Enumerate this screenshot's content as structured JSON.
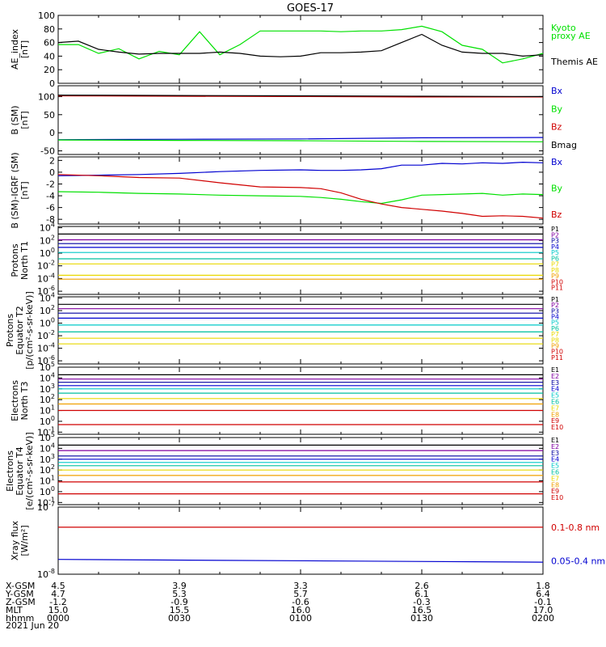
{
  "title": "GOES-17",
  "colors": {
    "black": "#000000",
    "green": "#00e000",
    "blue": "#0000d0",
    "red": "#d00000",
    "navy": "#0000a0",
    "cyan": "#00c8c8",
    "teal": "#00c0a0",
    "yellow": "#e8d800",
    "orange": "#f0a000",
    "purple": "#8000a0"
  },
  "chart_data": [
    {
      "type": "line",
      "id": "ae",
      "ylabel": [
        "AE_index",
        "[nT]"
      ],
      "yticks": [
        "100",
        "80",
        "60",
        "40",
        "20",
        "0"
      ],
      "ylim": [
        0,
        100
      ],
      "x": [
        0,
        5,
        10,
        15,
        20,
        25,
        30,
        35,
        40,
        45,
        50,
        55,
        60,
        65,
        70,
        75,
        80,
        85,
        90,
        95,
        100,
        105,
        110,
        115,
        120
      ],
      "series": [
        {
          "name": "Kyoto proxy AE",
          "color": "#00e000",
          "values": [
            57,
            57,
            44,
            51,
            36,
            47,
            42,
            76,
            42,
            57,
            77,
            77,
            77,
            77,
            76,
            77,
            77,
            79,
            84,
            76,
            56,
            50,
            30,
            36,
            44
          ]
        },
        {
          "name": "Themis AE",
          "color": "#000000",
          "values": [
            60,
            62,
            50,
            46,
            43,
            44,
            44,
            44,
            46,
            44,
            40,
            39,
            40,
            45,
            45,
            46,
            48,
            60,
            72,
            56,
            46,
            44,
            44,
            40,
            42
          ]
        }
      ],
      "legend": [
        {
          "text": "Kyoto",
          "color": "#00e000"
        },
        {
          "text": "proxy AE",
          "color": "#00e000"
        },
        {
          "text": "Themis AE",
          "color": "#000000"
        }
      ]
    },
    {
      "type": "line",
      "id": "bsm",
      "ylabel": [
        "B (SM)",
        "[nT]"
      ],
      "yticks": [
        "100",
        "50",
        "0",
        "-50"
      ],
      "ylim": [
        -60,
        130
      ],
      "x": [
        0,
        30,
        60,
        90,
        120
      ],
      "series": [
        {
          "name": "Bx",
          "color": "#0000d0",
          "values": [
            -19,
            -18,
            -17,
            -14,
            -13
          ]
        },
        {
          "name": "By",
          "color": "#00e000",
          "values": [
            -20,
            -21,
            -22,
            -24,
            -25
          ]
        },
        {
          "name": "Bz",
          "color": "#d00000",
          "values": [
            102,
            101,
            100,
            99,
            99
          ]
        },
        {
          "name": "Bmag",
          "color": "#000000",
          "values": [
            104,
            103,
            102,
            101,
            100
          ]
        }
      ],
      "legend": [
        {
          "text": "Bx",
          "color": "#0000d0"
        },
        {
          "text": "By",
          "color": "#00e000"
        },
        {
          "text": "Bz",
          "color": "#d00000"
        },
        {
          "text": "Bmag",
          "color": "#000000"
        }
      ]
    },
    {
      "type": "line",
      "id": "bdiff",
      "ylabel": [
        "B (SM)-IGRF (SM)",
        "[nT]"
      ],
      "yticks": [
        "2",
        "0",
        "-2",
        "-4",
        "-6",
        "-8"
      ],
      "ylim": [
        -8.8,
        2.6
      ],
      "x": [
        0,
        10,
        20,
        30,
        40,
        50,
        60,
        65,
        70,
        75,
        80,
        85,
        90,
        95,
        100,
        105,
        110,
        115,
        120
      ],
      "series": [
        {
          "name": "Bx",
          "color": "#0000d0",
          "values": [
            -0.6,
            -0.5,
            -0.4,
            -0.2,
            0.1,
            0.3,
            0.4,
            0.3,
            0.3,
            0.4,
            0.6,
            1.2,
            1.2,
            1.5,
            1.4,
            1.6,
            1.5,
            1.7,
            1.6
          ]
        },
        {
          "name": "By",
          "color": "#00e000",
          "values": [
            -3.3,
            -3.4,
            -3.6,
            -3.7,
            -3.9,
            -4.0,
            -4.1,
            -4.3,
            -4.6,
            -5.0,
            -5.3,
            -4.7,
            -3.9,
            -3.8,
            -3.7,
            -3.6,
            -3.9,
            -3.7,
            -3.8
          ]
        },
        {
          "name": "Bz",
          "color": "#d00000",
          "values": [
            -0.4,
            -0.6,
            -0.9,
            -1.0,
            -1.8,
            -2.5,
            -2.6,
            -2.8,
            -3.5,
            -4.6,
            -5.4,
            -6.0,
            -6.3,
            -6.6,
            -7.0,
            -7.5,
            -7.4,
            -7.5,
            -7.8
          ]
        }
      ],
      "legend": [
        {
          "text": "Bx",
          "color": "#0000d0"
        },
        {
          "text": "By",
          "color": "#00e000"
        },
        {
          "text": "Bz",
          "color": "#d00000"
        }
      ]
    },
    {
      "type": "line",
      "id": "pnorth",
      "ylabel": [
        "Protons",
        "North T1"
      ],
      "ytick_exponents": [
        "4",
        "2",
        "0",
        "-2",
        "-4",
        "-6"
      ],
      "ylim_log10": [
        -6.5,
        4.2
      ],
      "x": [
        0,
        120
      ],
      "series": [
        {
          "name": "P1",
          "color": "#000000",
          "values_log10": [
            3.0,
            3.0
          ]
        },
        {
          "name": "P2",
          "color": "#8000a0",
          "values_log10": [
            2.1,
            2.1
          ]
        },
        {
          "name": "P3",
          "color": "#0000a0",
          "values_log10": [
            1.5,
            1.5
          ]
        },
        {
          "name": "P4",
          "color": "#0000d0",
          "values_log10": [
            0.9,
            0.9
          ]
        },
        {
          "name": "P5",
          "color": "#00c8c8",
          "values_log10": [
            0.1,
            0.1
          ]
        },
        {
          "name": "P6",
          "color": "#00c0a0",
          "values_log10": [
            -0.9,
            -0.9
          ]
        },
        {
          "name": "P7",
          "color": "#e8d800",
          "values_log10": [
            -1.7,
            -1.7
          ]
        },
        {
          "name": "P8",
          "color": "#e8d800",
          "values_log10": [
            -3.5,
            -3.5
          ]
        },
        {
          "name": "P9",
          "color": "#f0a000",
          "values_log10": [
            -4.1,
            -4.1
          ]
        }
      ],
      "legend": [
        {
          "text": "P1",
          "color": "#000000"
        },
        {
          "text": "P2",
          "color": "#8000a0"
        },
        {
          "text": "P3",
          "color": "#0000a0"
        },
        {
          "text": "P4",
          "color": "#0000d0"
        },
        {
          "text": "P5",
          "color": "#00c8c8"
        },
        {
          "text": "P6",
          "color": "#00c0a0"
        },
        {
          "text": "P7",
          "color": "#e8d800"
        },
        {
          "text": "P8",
          "color": "#e8d800"
        },
        {
          "text": "P9",
          "color": "#f0a000"
        },
        {
          "text": "P10",
          "color": "#d00000"
        },
        {
          "text": "P11",
          "color": "#d00000"
        }
      ]
    },
    {
      "type": "line",
      "id": "peq",
      "ylabel": [
        "Protons",
        "Equator T2",
        "[p/(cm²-s-sr-keV)]"
      ],
      "ytick_exponents": [
        "4",
        "2",
        "0",
        "-2",
        "-4",
        "-6"
      ],
      "ylim_log10": [
        -6.5,
        4.2
      ],
      "x": [
        0,
        120
      ],
      "series": [
        {
          "name": "P1",
          "color": "#000000",
          "values_log10": [
            3.0,
            3.0
          ]
        },
        {
          "name": "P2",
          "color": "#8000a0",
          "values_log10": [
            2.3,
            2.3
          ]
        },
        {
          "name": "P3",
          "color": "#0000a0",
          "values_log10": [
            1.6,
            1.6
          ]
        },
        {
          "name": "P4",
          "color": "#0000d0",
          "values_log10": [
            0.8,
            0.8
          ]
        },
        {
          "name": "P5",
          "color": "#00c8c8",
          "values_log10": [
            -0.3,
            -0.3
          ]
        },
        {
          "name": "P6",
          "color": "#00c0a0",
          "values_log10": [
            -1.4,
            -1.4
          ]
        },
        {
          "name": "P7",
          "color": "#e8d800",
          "values_log10": [
            -2.4,
            -2.4
          ]
        },
        {
          "name": "P8",
          "color": "#e8d800",
          "values_log10": [
            -3.3,
            -3.3
          ]
        }
      ],
      "legend": [
        {
          "text": "P1",
          "color": "#000000"
        },
        {
          "text": "P2",
          "color": "#8000a0"
        },
        {
          "text": "P3",
          "color": "#0000a0"
        },
        {
          "text": "P4",
          "color": "#0000d0"
        },
        {
          "text": "P5",
          "color": "#00c8c8"
        },
        {
          "text": "P6",
          "color": "#00c0a0"
        },
        {
          "text": "P7",
          "color": "#e8d800"
        },
        {
          "text": "P8",
          "color": "#e8d800"
        },
        {
          "text": "P9",
          "color": "#f0a000"
        },
        {
          "text": "P10",
          "color": "#d00000"
        },
        {
          "text": "P11",
          "color": "#d00000"
        }
      ]
    },
    {
      "type": "line",
      "id": "enorth",
      "ylabel": [
        "Electrons",
        "North T3"
      ],
      "ytick_exponents": [
        "5",
        "4",
        "3",
        "2",
        "1",
        "0",
        "-1"
      ],
      "ylim_log10": [
        -1.2,
        5.0
      ],
      "x": [
        0,
        120
      ],
      "series": [
        {
          "name": "E1",
          "color": "#000000",
          "values_log10": [
            4.3,
            4.3
          ]
        },
        {
          "name": "E2",
          "color": "#8000a0",
          "values_log10": [
            3.9,
            3.9
          ]
        },
        {
          "name": "E3",
          "color": "#0000a0",
          "values_log10": [
            3.6,
            3.6
          ]
        },
        {
          "name": "E4",
          "color": "#0000d0",
          "values_log10": [
            3.3,
            3.3
          ]
        },
        {
          "name": "E5",
          "color": "#00c8c8",
          "values_log10": [
            3.0,
            3.0
          ]
        },
        {
          "name": "E6",
          "color": "#00c0a0",
          "values_log10": [
            2.6,
            2.6
          ]
        },
        {
          "name": "E7",
          "color": "#e8d800",
          "values_log10": [
            2.1,
            2.1
          ]
        },
        {
          "name": "E8",
          "color": "#f0a000",
          "values_log10": [
            1.6,
            1.6
          ]
        },
        {
          "name": "E9",
          "color": "#d00000",
          "values_log10": [
            1.0,
            1.0
          ]
        },
        {
          "name": "E10",
          "color": "#d00000",
          "values_log10": [
            -0.3,
            -0.3
          ]
        }
      ],
      "legend": [
        {
          "text": "E1",
          "color": "#000000"
        },
        {
          "text": "E2",
          "color": "#8000a0"
        },
        {
          "text": "E3",
          "color": "#0000a0"
        },
        {
          "text": "E4",
          "color": "#0000d0"
        },
        {
          "text": "E5",
          "color": "#00c8c8"
        },
        {
          "text": "E6",
          "color": "#00c0a0"
        },
        {
          "text": "E7",
          "color": "#e8d800"
        },
        {
          "text": "E8",
          "color": "#f0a000"
        },
        {
          "text": "E9",
          "color": "#d00000"
        },
        {
          "text": "E10",
          "color": "#d00000"
        }
      ]
    },
    {
      "type": "line",
      "id": "eeq",
      "ylabel": [
        "Electrons",
        "Equator T4",
        "[e/(cm²-s-sr-keV)]"
      ],
      "ytick_exponents": [
        "5",
        "4",
        "3",
        "2",
        "1",
        "0",
        "-1"
      ],
      "ylim_log10": [
        -1.2,
        5.0
      ],
      "x": [
        0,
        120
      ],
      "series": [
        {
          "name": "E1",
          "color": "#000000",
          "values_log10": [
            4.3,
            4.3
          ]
        },
        {
          "name": "E2",
          "color": "#8000a0",
          "values_log10": [
            3.8,
            3.8
          ]
        },
        {
          "name": "E3",
          "color": "#0000a0",
          "values_log10": [
            3.3,
            3.3
          ]
        },
        {
          "name": "E4",
          "color": "#0000d0",
          "values_log10": [
            3.0,
            3.0
          ]
        },
        {
          "name": "E5",
          "color": "#00c8c8",
          "values_log10": [
            2.7,
            2.7
          ]
        },
        {
          "name": "E6",
          "color": "#00c0a0",
          "values_log10": [
            2.4,
            2.4
          ]
        },
        {
          "name": "E7",
          "color": "#e8d800",
          "values_log10": [
            2.0,
            2.0
          ]
        },
        {
          "name": "E8",
          "color": "#f0a000",
          "values_log10": [
            1.5,
            1.5
          ]
        },
        {
          "name": "E9",
          "color": "#d00000",
          "values_log10": [
            0.9,
            0.9
          ]
        },
        {
          "name": "E10",
          "color": "#d00000",
          "values_log10": [
            -0.2,
            -0.2
          ]
        }
      ],
      "legend": [
        {
          "text": "E1",
          "color": "#000000"
        },
        {
          "text": "E2",
          "color": "#8000a0"
        },
        {
          "text": "E3",
          "color": "#0000a0"
        },
        {
          "text": "E4",
          "color": "#0000d0"
        },
        {
          "text": "E5",
          "color": "#00c8c8"
        },
        {
          "text": "E6",
          "color": "#00c0a0"
        },
        {
          "text": "E7",
          "color": "#e8d800"
        },
        {
          "text": "E8",
          "color": "#f0a000"
        },
        {
          "text": "E9",
          "color": "#d00000"
        },
        {
          "text": "E10",
          "color": "#d00000"
        }
      ]
    },
    {
      "type": "line",
      "id": "xray",
      "ylabel": [
        "Xray flux",
        "[W/m²]"
      ],
      "ytick_exponents": [
        "-7",
        "-8"
      ],
      "ylim_log10": [
        -8.0,
        -7.0
      ],
      "x": [
        0,
        120
      ],
      "series": [
        {
          "name": "0.1-0.8 nm",
          "color": "#d00000",
          "values_log10": [
            -7.3,
            -7.3
          ]
        },
        {
          "name": "0.05-0.4 nm",
          "color": "#0000d0",
          "values_log10": [
            -7.78,
            -7.82
          ]
        }
      ],
      "legend": [
        {
          "text": "0.1-0.8 nm",
          "color": "#d00000"
        },
        {
          "text": "0.05-0.4 nm",
          "color": "#0000d0"
        }
      ]
    }
  ],
  "xaxis": {
    "row_labels": [
      "X-GSM",
      "Y-GSM",
      "Z-GSM",
      "MLT",
      "hhmm",
      "2021 Jun 20"
    ],
    "columns": [
      {
        "x": 0,
        "values": [
          "4.5",
          "4.7",
          "-1.2",
          "15.0",
          "0000"
        ]
      },
      {
        "x": 30,
        "values": [
          "3.9",
          "5.3",
          "-0.9",
          "15.5",
          "0030"
        ]
      },
      {
        "x": 60,
        "values": [
          "3.3",
          "5.7",
          "-0.6",
          "16.0",
          "0100"
        ]
      },
      {
        "x": 90,
        "values": [
          "2.6",
          "6.1",
          "-0.3",
          "16.5",
          "0130"
        ]
      },
      {
        "x": 120,
        "values": [
          "1.8",
          "6.4",
          "-0.1",
          "17.0",
          "0200"
        ]
      }
    ]
  }
}
